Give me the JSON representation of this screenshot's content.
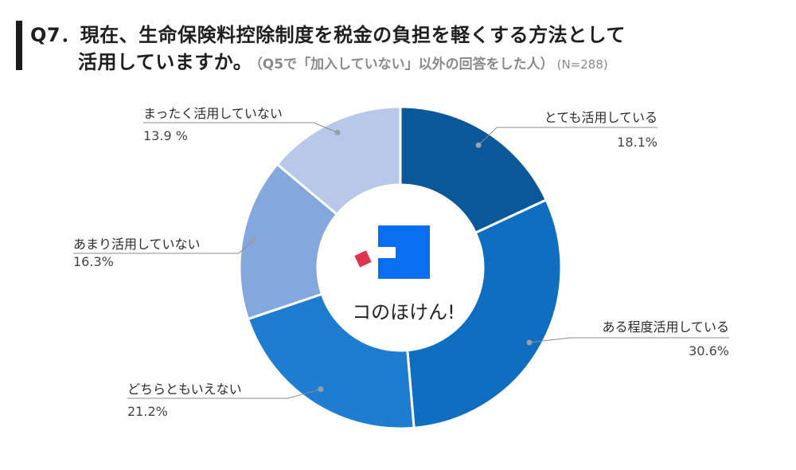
{
  "title": {
    "line1": "Q7．現在、生命保険料控除制度を税金の負担を軽くする方法として",
    "line2_main": "活用していますか。",
    "line2_sub": "（Q5で「加入していない」以外の回答をした人）",
    "line2_n": "(N=288)"
  },
  "brand": {
    "name": "コのほけん!"
  },
  "colors": {
    "s1": "#0a5799",
    "s2": "#0f6ebf",
    "s3": "#1f7dd1",
    "s4": "#84a7de",
    "s5": "#b7c8ea",
    "logo_blue": "#0a6ef0",
    "logo_red": "#e03350"
  },
  "chart_data": {
    "type": "pie",
    "title": "",
    "slices": [
      {
        "label": "とても活用している",
        "value": 18.1,
        "value_label": "18.1%"
      },
      {
        "label": "ある程度活用している",
        "value": 30.6,
        "value_label": "30.6%"
      },
      {
        "label": "どちらともいえない",
        "value": 21.2,
        "value_label": "21.2%"
      },
      {
        "label": "あまり活用していない",
        "value": 16.3,
        "value_label": "16.3%"
      },
      {
        "label": "まったく活用していない",
        "value": 13.9,
        "value_label": "13.9 %"
      }
    ]
  }
}
